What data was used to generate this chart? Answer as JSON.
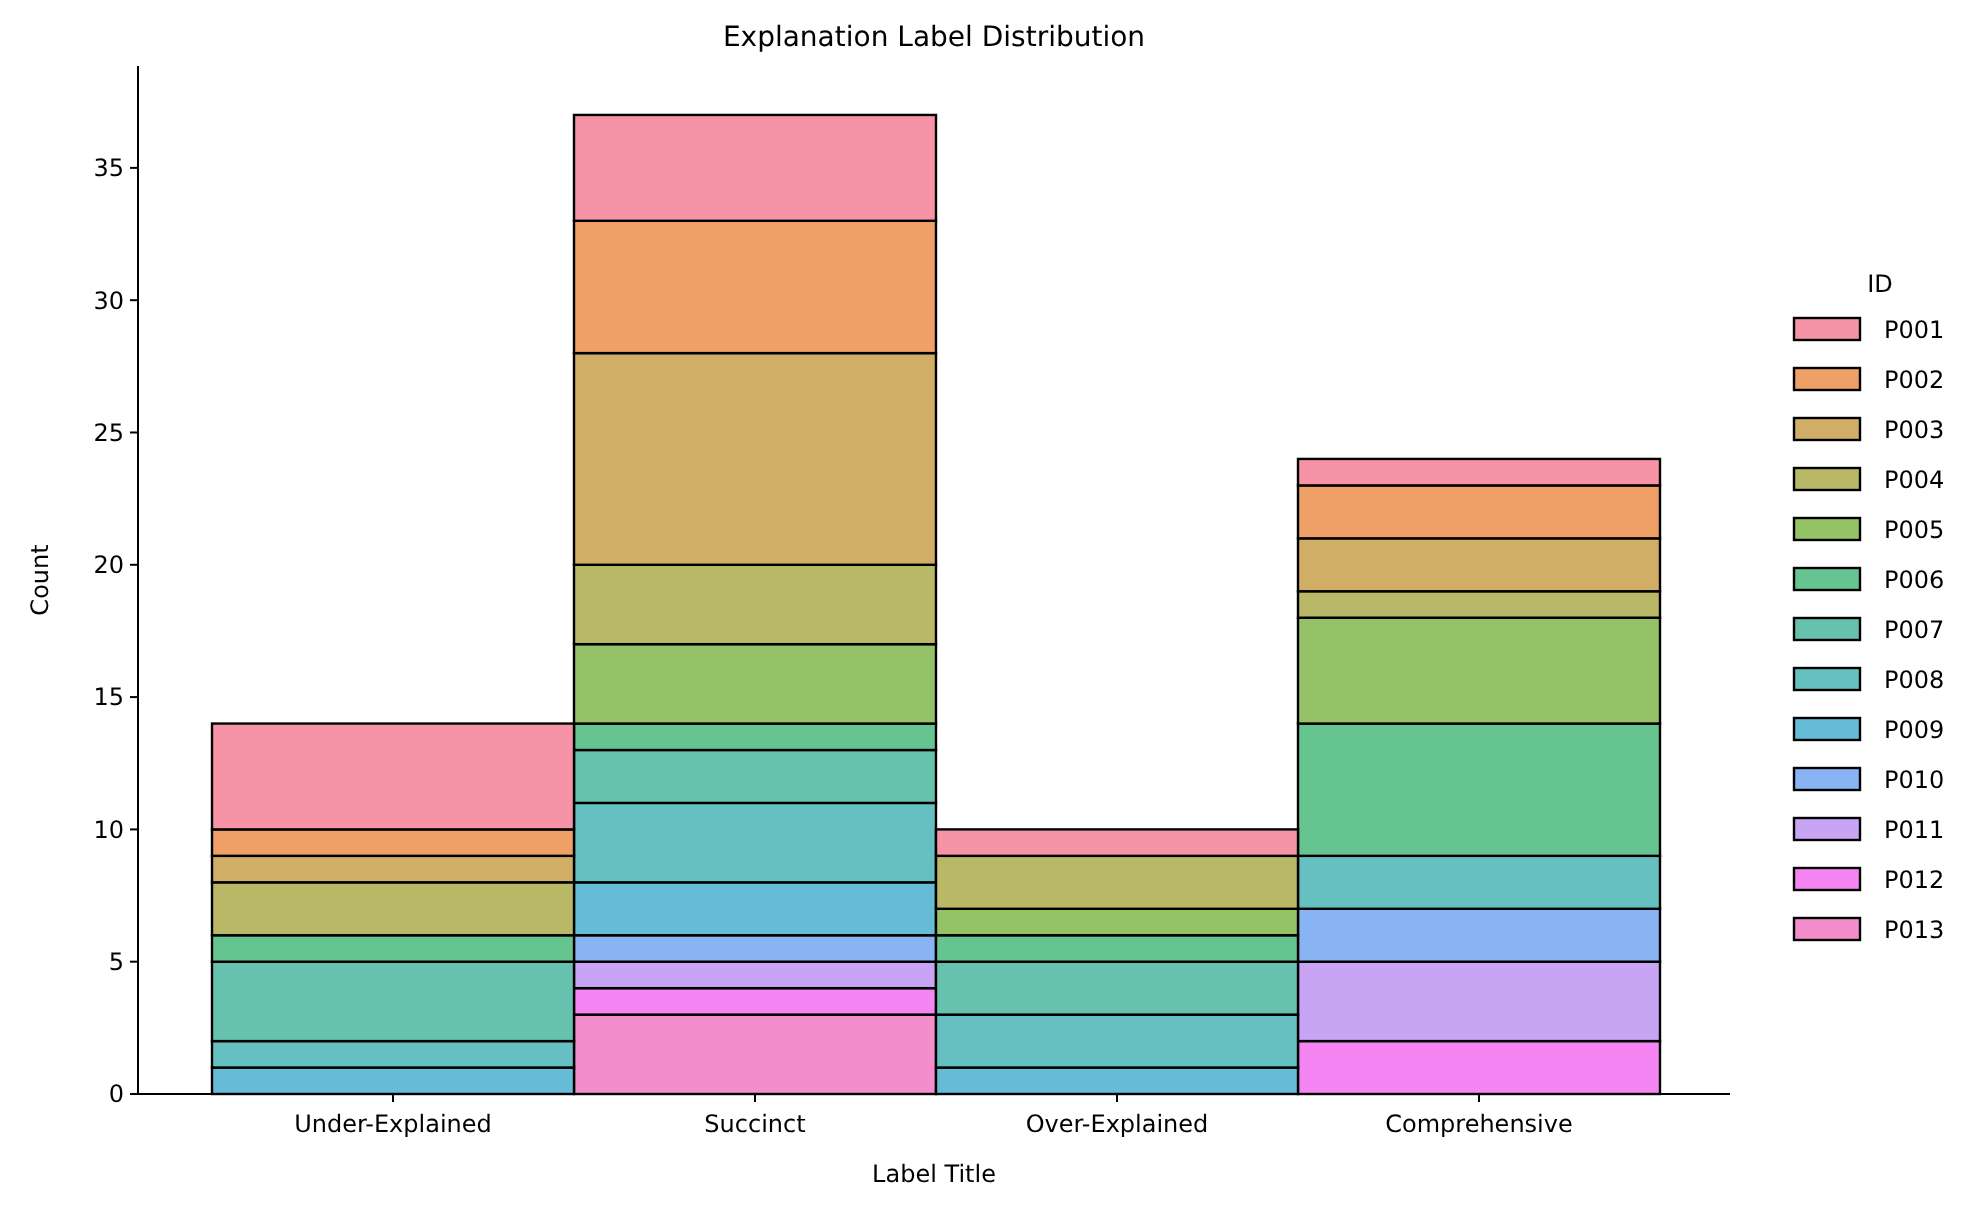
{
  "chart_data": {
    "type": "bar",
    "stacked": true,
    "title": "Explanation Label Distribution",
    "xlabel": "Label Title",
    "ylabel": "Count",
    "legend_title": "ID",
    "legend": "right",
    "categories": [
      "Under-Explained",
      "Succinct",
      "Over-Explained",
      "Comprehensive"
    ],
    "ylim": [
      0,
      38.85
    ],
    "yticks": [
      0,
      5,
      10,
      15,
      20,
      25,
      30,
      35
    ],
    "grid": false,
    "series": [
      {
        "name": "P013",
        "color": "#f48dcb",
        "values": [
          0,
          3,
          0,
          0
        ]
      },
      {
        "name": "P012",
        "color": "#f585f2",
        "values": [
          0,
          1,
          0,
          2
        ]
      },
      {
        "name": "P011",
        "color": "#c8a5f4",
        "values": [
          0,
          1,
          0,
          3
        ]
      },
      {
        "name": "P010",
        "color": "#89b4f4",
        "values": [
          0,
          1,
          0,
          2
        ]
      },
      {
        "name": "P009",
        "color": "#66bbd6",
        "values": [
          1,
          2,
          1,
          0
        ]
      },
      {
        "name": "P008",
        "color": "#66bfc0",
        "values": [
          1,
          3,
          2,
          2
        ]
      },
      {
        "name": "P007",
        "color": "#66c2ae",
        "values": [
          3,
          2,
          2,
          0
        ]
      },
      {
        "name": "P006",
        "color": "#66c490",
        "values": [
          1,
          1,
          1,
          5
        ]
      },
      {
        "name": "P005",
        "color": "#95c167",
        "values": [
          0,
          3,
          1,
          4
        ]
      },
      {
        "name": "P004",
        "color": "#b8b866",
        "values": [
          2,
          3,
          2,
          1
        ]
      },
      {
        "name": "P003",
        "color": "#d0ae66",
        "values": [
          1,
          8,
          0,
          2
        ]
      },
      {
        "name": "P002",
        "color": "#efa066",
        "values": [
          1,
          5,
          0,
          2
        ]
      },
      {
        "name": "P001",
        "color": "#f793a6",
        "values": [
          4,
          4,
          1,
          1
        ]
      }
    ]
  }
}
